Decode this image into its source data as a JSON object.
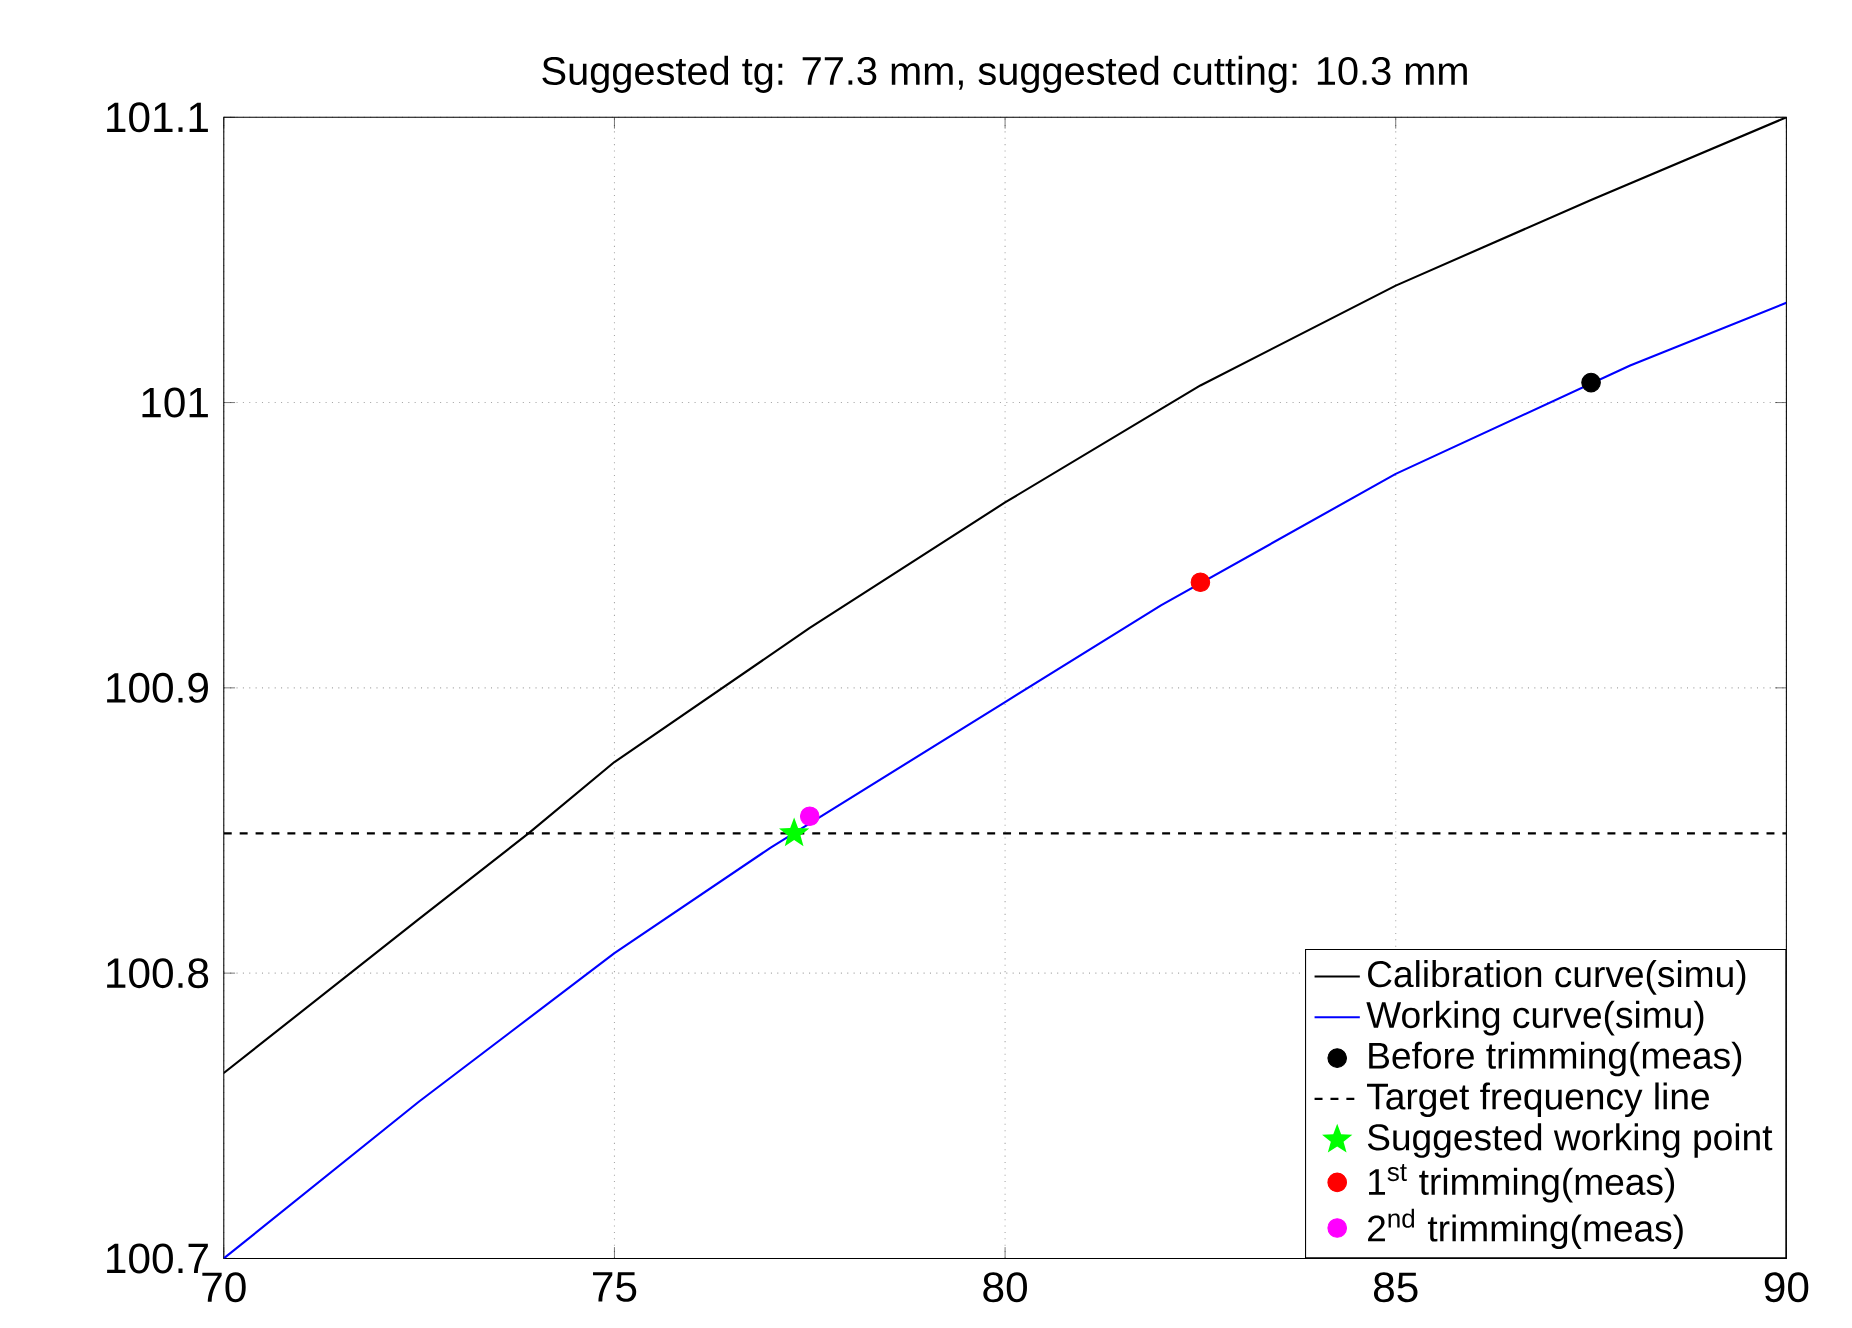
{
  "chart_data": {
    "type": "line",
    "title": "Suggested tg: 77.3 mm, suggested cutting: 10.3 mm",
    "xlim": [
      70,
      90
    ],
    "ylim": [
      100.7,
      101.1
    ],
    "xticks": [
      70,
      75,
      80,
      85,
      90
    ],
    "yticks": [
      100.7,
      100.8,
      100.9,
      101,
      101.1
    ],
    "grid": true,
    "legend": "bottom right",
    "series": [
      {
        "name": "Calibration curve(simu)",
        "color": "#000000",
        "marker": "none",
        "line_style": "solid",
        "x": [
          70,
          72.5,
          73.9,
          75,
          77.5,
          80,
          82.5,
          85,
          87.5,
          90
        ],
        "values": [
          100.765,
          100.819,
          100.849,
          100.874,
          100.921,
          100.965,
          101.006,
          101.041,
          101.071,
          101.1
        ]
      },
      {
        "name": "Working curve(simu)",
        "color": "#0000ff",
        "marker": "none",
        "line_style": "solid",
        "x": [
          70,
          72.5,
          75,
          77,
          80,
          82,
          85,
          88,
          90
        ],
        "values": [
          100.7,
          100.755,
          100.807,
          100.844,
          100.895,
          100.929,
          100.975,
          101.013,
          101.035
        ]
      },
      {
        "name": "Before trimming(meas)",
        "type": "scatter",
        "color": "#000000",
        "marker": "circle",
        "x": [
          87.5
        ],
        "values": [
          101.007
        ]
      },
      {
        "name": "Target frequency line",
        "color": "#000000",
        "marker": "none",
        "line_style": "dashed",
        "x": [
          70,
          90
        ],
        "values": [
          100.849,
          100.849
        ]
      },
      {
        "name": "Suggested working point",
        "type": "scatter",
        "color": "#00ff00",
        "marker": "star",
        "x": [
          77.3
        ],
        "values": [
          100.849
        ]
      },
      {
        "name": "1$^{st}$ trimming(meas)",
        "type": "scatter",
        "color": "#ff0000",
        "marker": "circle",
        "x": [
          82.5
        ],
        "values": [
          100.937
        ]
      },
      {
        "name": "2$^{nd}$ trimming(meas)",
        "type": "scatter",
        "color": "#ff00ff",
        "marker": "circle",
        "x": [
          77.5
        ],
        "values": [
          100.855
        ]
      }
    ]
  }
}
